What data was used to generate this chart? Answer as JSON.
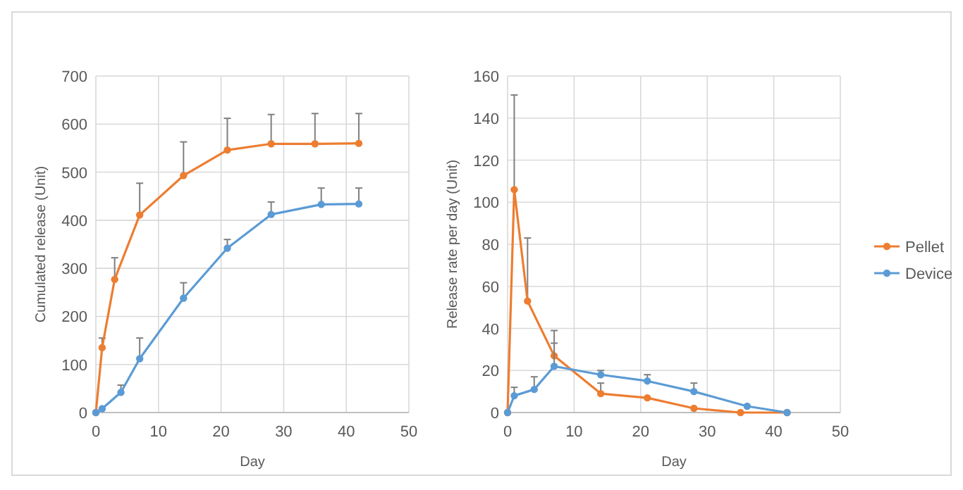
{
  "chart_data": [
    {
      "type": "line",
      "xlabel": "Day",
      "ylabel": "Cumulated release (Unit)",
      "xlim": [
        0,
        50
      ],
      "xticks": [
        0,
        10,
        20,
        30,
        40,
        50
      ],
      "ylim": [
        0,
        700
      ],
      "yticks": [
        0,
        100,
        200,
        300,
        400,
        500,
        600,
        700
      ],
      "grid": true,
      "marker": "circle",
      "line_style": "solid",
      "legend": false,
      "series": [
        {
          "color": "#ed7d31",
          "x": [
            0,
            1,
            3,
            7,
            14,
            21,
            28,
            35,
            42
          ],
          "values": [
            0,
            135,
            277,
            411,
            493,
            546,
            559,
            559,
            560
          ],
          "errors": [
            null,
            [
              135,
              155
            ],
            [
              277,
              322
            ],
            [
              411,
              477
            ],
            [
              493,
              563
            ],
            [
              546,
              612
            ],
            [
              559,
              620
            ],
            [
              559,
              622
            ],
            [
              560,
              622
            ]
          ]
        },
        {
          "color": "#5b9bd5",
          "x": [
            0,
            1,
            4,
            7,
            14,
            21,
            28,
            36,
            42
          ],
          "values": [
            0,
            8,
            42,
            112,
            238,
            342,
            412,
            433,
            434
          ],
          "errors": [
            null,
            null,
            [
              42,
              57
            ],
            [
              112,
              155
            ],
            [
              238,
              270
            ],
            [
              342,
              360
            ],
            [
              412,
              438
            ],
            [
              433,
              467
            ],
            [
              434,
              467
            ]
          ]
        }
      ]
    },
    {
      "type": "line",
      "xlabel": "Day",
      "ylabel": "Release rate per day (Unit)",
      "xlim": [
        0,
        50
      ],
      "xticks": [
        0,
        10,
        20,
        30,
        40,
        50
      ],
      "ylim": [
        0,
        160
      ],
      "yticks": [
        0,
        20,
        40,
        60,
        80,
        100,
        120,
        140,
        160
      ],
      "grid": true,
      "marker": "circle",
      "line_style": "solid",
      "legend": "right",
      "series": [
        {
          "name": "Pellet",
          "color": "#ed7d31",
          "x": [
            0,
            1,
            3,
            7,
            14,
            21,
            28,
            35,
            42
          ],
          "values": [
            0,
            106,
            53,
            27,
            9,
            7,
            2,
            0,
            0
          ],
          "errors": [
            null,
            [
              106,
              151
            ],
            [
              53,
              83
            ],
            [
              27,
              39
            ],
            [
              9,
              14
            ],
            null,
            null,
            null,
            null
          ]
        },
        {
          "name": "Device",
          "color": "#5b9bd5",
          "x": [
            0,
            1,
            4,
            7,
            14,
            21,
            28,
            36,
            42
          ],
          "values": [
            0,
            8,
            11,
            22,
            18,
            15,
            10,
            3,
            0
          ],
          "errors": [
            null,
            [
              8,
              12
            ],
            [
              11,
              17
            ],
            [
              22,
              33
            ],
            [
              18,
              20
            ],
            [
              15,
              18
            ],
            [
              10,
              14
            ],
            null,
            null
          ]
        }
      ]
    }
  ]
}
